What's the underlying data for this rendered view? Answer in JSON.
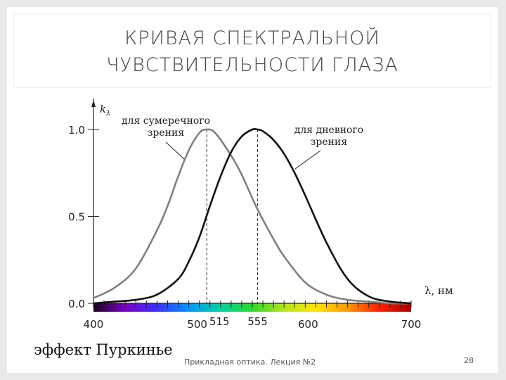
{
  "slide": {
    "title": "КРИВАЯ СПЕКТРАЛЬНОЙ\nЧУВСТВИТЕЛЬНОСТИ ГЛАЗА",
    "caption": "эффект Пуркинье",
    "footer": "Прикладная оптика. Лекция №2",
    "page_number": "28"
  },
  "chart_data": {
    "type": "line",
    "title": "",
    "ylabel": "k",
    "ylabel_subscript": "λ",
    "xlabel": "λ, нм",
    "xlim": [
      400,
      700
    ],
    "ylim": [
      0,
      1.0
    ],
    "y_ticks": [
      {
        "value": 0.0,
        "label": "0.0"
      },
      {
        "value": 0.5,
        "label": "0.5"
      },
      {
        "value": 1.0,
        "label": "1.0"
      }
    ],
    "x_ticks": [
      {
        "value": 400,
        "label": "400"
      },
      {
        "value": 500,
        "label": "500"
      },
      {
        "value": 515,
        "label": "515"
      },
      {
        "value": 555,
        "label": "555"
      },
      {
        "value": 600,
        "label": "600"
      },
      {
        "value": 700,
        "label": "700"
      }
    ],
    "spectrum_bar": true,
    "series": [
      {
        "name": "для сумеречного зрения",
        "color": "#808080",
        "peak": 507,
        "x": [
          400,
          420,
          440,
          460,
          470,
          480,
          490,
          500,
          507,
          515,
          530,
          540,
          555,
          570,
          580,
          600,
          620,
          640,
          660,
          680,
          700
        ],
        "y": [
          0.03,
          0.09,
          0.2,
          0.42,
          0.56,
          0.73,
          0.88,
          0.98,
          1.0,
          0.98,
          0.85,
          0.74,
          0.54,
          0.37,
          0.27,
          0.12,
          0.05,
          0.02,
          0.01,
          0.0,
          0.0
        ]
      },
      {
        "name": "для дневного зрения",
        "color": "#111111",
        "peak": 555,
        "x": [
          400,
          420,
          440,
          460,
          480,
          490,
          500,
          510,
          520,
          530,
          540,
          550,
          555,
          560,
          570,
          580,
          590,
          600,
          620,
          640,
          660,
          680,
          700
        ],
        "y": [
          0.0,
          0.01,
          0.02,
          0.05,
          0.14,
          0.24,
          0.38,
          0.56,
          0.73,
          0.87,
          0.96,
          1.0,
          1.0,
          0.99,
          0.94,
          0.86,
          0.75,
          0.62,
          0.35,
          0.14,
          0.04,
          0.01,
          0.0
        ]
      }
    ],
    "annotations": [
      {
        "text": "для сумеречного\nзрения",
        "points_to_series": 0
      },
      {
        "text": "для дневного\nзрения",
        "points_to_series": 1
      }
    ],
    "spectrum_colors": [
      "#1a001f",
      "#7a00c8",
      "#3c30ff",
      "#0095ff",
      "#00d2a0",
      "#2cd82c",
      "#b4e61e",
      "#ffe600",
      "#ff9600",
      "#ff1e00",
      "#aa0000"
    ]
  }
}
